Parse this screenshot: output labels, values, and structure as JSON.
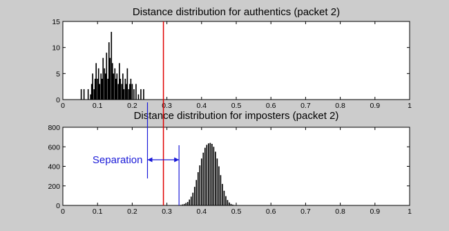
{
  "chart_data": [
    {
      "type": "bar",
      "title": "Distance distribution for authentics (packet 2)",
      "xlabel": "",
      "ylabel": "",
      "xlim": [
        0,
        1
      ],
      "ylim": [
        0,
        15
      ],
      "xticks": [
        "0",
        "0.1",
        "0.2",
        "0.3",
        "0.4",
        "0.5",
        "0.6",
        "0.7",
        "0.8",
        "0.9",
        "1"
      ],
      "yticks": [
        "0",
        "5",
        "10",
        "15"
      ],
      "bin_width": 0.0033,
      "x": [
        0.053,
        0.061,
        0.073,
        0.08,
        0.083,
        0.086,
        0.09,
        0.093,
        0.096,
        0.1,
        0.103,
        0.106,
        0.11,
        0.113,
        0.116,
        0.12,
        0.123,
        0.126,
        0.13,
        0.133,
        0.136,
        0.14,
        0.143,
        0.146,
        0.15,
        0.153,
        0.156,
        0.16,
        0.163,
        0.166,
        0.17,
        0.173,
        0.176,
        0.18,
        0.183,
        0.186,
        0.19,
        0.193,
        0.196,
        0.2,
        0.205,
        0.211,
        0.218,
        0.225,
        0.233
      ],
      "values": [
        2,
        2,
        2,
        1,
        3,
        5,
        2,
        4,
        7,
        4,
        6,
        3,
        5,
        4,
        8,
        6,
        5,
        9,
        4,
        11,
        8,
        13,
        7,
        5,
        6,
        4,
        5,
        3,
        7,
        4,
        3,
        5,
        2,
        4,
        3,
        6,
        2,
        3,
        4,
        3,
        2,
        3,
        1,
        2,
        2
      ],
      "grid": false,
      "legend": "none"
    },
    {
      "type": "bar",
      "title": "Distance distribution for imposters (packet 2)",
      "xlabel": "",
      "ylabel": "",
      "xlim": [
        0,
        1
      ],
      "ylim": [
        0,
        800
      ],
      "xticks": [
        "0",
        "0.1",
        "0.2",
        "0.3",
        "0.4",
        "0.5",
        "0.6",
        "0.7",
        "0.8",
        "0.9",
        "1"
      ],
      "yticks": [
        "0",
        "200",
        "400",
        "600",
        "800"
      ],
      "bin_width": 0.0033,
      "x": [
        0.336,
        0.34,
        0.345,
        0.35,
        0.355,
        0.36,
        0.365,
        0.37,
        0.375,
        0.38,
        0.385,
        0.39,
        0.395,
        0.4,
        0.405,
        0.41,
        0.415,
        0.42,
        0.425,
        0.43,
        0.435,
        0.44,
        0.445,
        0.45,
        0.455,
        0.46,
        0.465,
        0.47,
        0.475,
        0.48,
        0.485,
        0.49,
        0.495,
        0.5
      ],
      "values": [
        3,
        5,
        10,
        15,
        25,
        35,
        60,
        90,
        130,
        190,
        260,
        340,
        410,
        480,
        540,
        590,
        620,
        635,
        640,
        630,
        600,
        550,
        480,
        400,
        310,
        220,
        150,
        95,
        55,
        30,
        15,
        8,
        4,
        2
      ],
      "grid": false,
      "legend": "none"
    }
  ],
  "annotations": {
    "threshold_line_x": 0.29,
    "threshold_color": "#e00000",
    "separation_label": "Separation",
    "separation_from": 0.244,
    "separation_to": 0.335,
    "separation_color": "#1a1ad8"
  }
}
